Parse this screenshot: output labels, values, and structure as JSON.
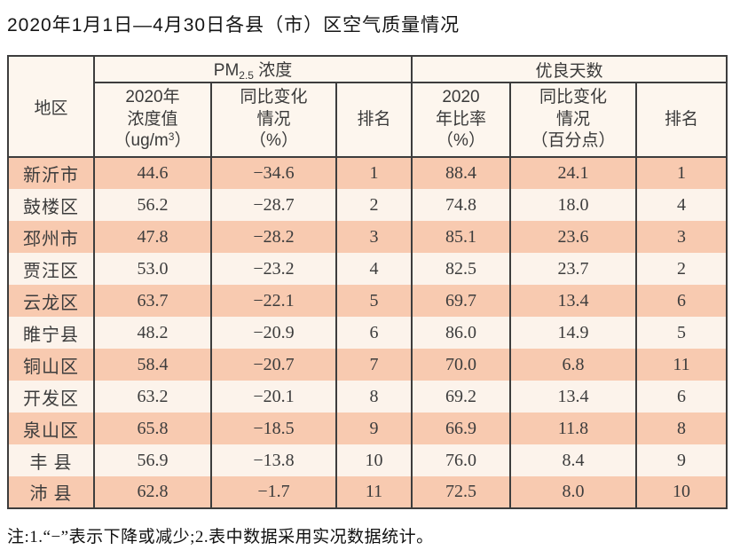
{
  "title": "2020年1月1日—4月30日各县（市）区空气质量情况",
  "table": {
    "region_header": "地区",
    "groups": {
      "pm25": {
        "base": "PM",
        "sub": "2.5",
        "rest": " 浓度"
      },
      "good_days": "优良天数"
    },
    "sub_headers": {
      "pm_value": {
        "line1": "2020年",
        "line2": "浓度值",
        "unit_pre": "（ug/m",
        "unit_sup": "3",
        "unit_post": "）"
      },
      "pm_change": {
        "line1": "同比变化",
        "line2": "情况",
        "line3": "（%）"
      },
      "pm_rank": "排名",
      "good_rate": {
        "line1": "2020",
        "line2": "年比率",
        "line3": "（%）"
      },
      "good_change": {
        "line1": "同比变化",
        "line2": "情况",
        "line3": "（百分点）"
      },
      "good_rank": "排名"
    },
    "rows": [
      {
        "region": "新沂市",
        "pm_value": "44.6",
        "pm_change": "−34.6",
        "pm_rank": "1",
        "good_rate": "88.4",
        "good_change": "24.1",
        "good_rank": "1"
      },
      {
        "region": "鼓楼区",
        "pm_value": "56.2",
        "pm_change": "−28.7",
        "pm_rank": "2",
        "good_rate": "74.8",
        "good_change": "18.0",
        "good_rank": "4"
      },
      {
        "region": "邳州市",
        "pm_value": "47.8",
        "pm_change": "−28.2",
        "pm_rank": "3",
        "good_rate": "85.1",
        "good_change": "23.6",
        "good_rank": "3"
      },
      {
        "region": "贾汪区",
        "pm_value": "53.0",
        "pm_change": "−23.2",
        "pm_rank": "4",
        "good_rate": "82.5",
        "good_change": "23.7",
        "good_rank": "2"
      },
      {
        "region": "云龙区",
        "pm_value": "63.7",
        "pm_change": "−22.1",
        "pm_rank": "5",
        "good_rate": "69.7",
        "good_change": "13.4",
        "good_rank": "6"
      },
      {
        "region": "睢宁县",
        "pm_value": "48.2",
        "pm_change": "−20.9",
        "pm_rank": "6",
        "good_rate": "86.0",
        "good_change": "14.9",
        "good_rank": "5"
      },
      {
        "region": "铜山区",
        "pm_value": "58.4",
        "pm_change": "−20.7",
        "pm_rank": "7",
        "good_rate": "70.0",
        "good_change": "6.8",
        "good_rank": "11"
      },
      {
        "region": "开发区",
        "pm_value": "63.2",
        "pm_change": "−20.1",
        "pm_rank": "8",
        "good_rate": "69.2",
        "good_change": "13.4",
        "good_rank": "6"
      },
      {
        "region": "泉山区",
        "pm_value": "65.8",
        "pm_change": "−18.5",
        "pm_rank": "9",
        "good_rate": "66.9",
        "good_change": "11.8",
        "good_rank": "8"
      },
      {
        "region": "丰 县",
        "pm_value": "56.9",
        "pm_change": "−13.8",
        "pm_rank": "10",
        "good_rate": "76.0",
        "good_change": "8.4",
        "good_rank": "9"
      },
      {
        "region": "沛 县",
        "pm_value": "62.8",
        "pm_change": "−1.7",
        "pm_rank": "11",
        "good_rate": "72.5",
        "good_change": "8.0",
        "good_rank": "10"
      }
    ]
  },
  "footnote": "注:1.“−”表示下降或减少;2.表中数据采用实况数据统计。",
  "colors": {
    "stripe_dark": "#f8cab0",
    "stripe_light": "#fcf3eb",
    "header_bg": "#fdf6ee",
    "border": "#3d3d3d"
  }
}
